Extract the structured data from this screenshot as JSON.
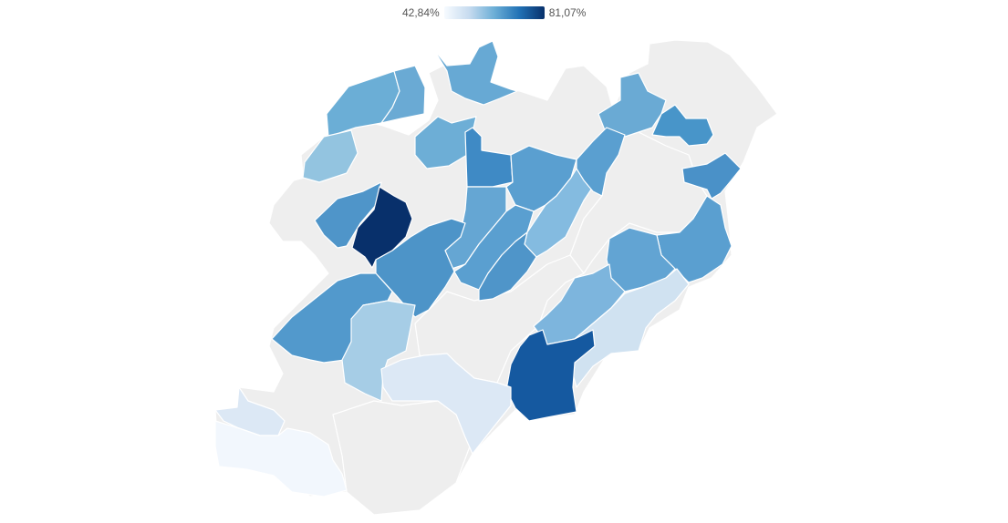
{
  "legend": {
    "min_label": "42,84%",
    "max_label": "81,07%",
    "min_value": 42.84,
    "max_value": 81.07,
    "colors": [
      "#f7fbff",
      "#c6dbef",
      "#6baed6",
      "#2171b5",
      "#08306b"
    ]
  },
  "map": {
    "no_data_color": "#eeeeee",
    "regions": [
      {
        "id": "nw-outer",
        "value": null
      },
      {
        "id": "n-west",
        "value": 64.5
      },
      {
        "id": "n-west-inner",
        "value": 62.0
      },
      {
        "id": "n-top",
        "value": 63.8
      },
      {
        "id": "n-top-right-grey",
        "value": null
      },
      {
        "id": "n-center",
        "value": 62.6
      },
      {
        "id": "n-center-dark",
        "value": 67.2
      },
      {
        "id": "w-small",
        "value": 56.8
      },
      {
        "id": "w-dark-navy",
        "value": 81.07
      },
      {
        "id": "w-mid-blue",
        "value": 65.9
      },
      {
        "id": "c-blue-1",
        "value": 63.4
      },
      {
        "id": "c-blue-2",
        "value": 64.8
      },
      {
        "id": "c-blue-3",
        "value": 66.0
      },
      {
        "id": "c-blue-4",
        "value": 65.2
      },
      {
        "id": "c-light",
        "value": 59.5
      },
      {
        "id": "ne-blue",
        "value": 63.0
      },
      {
        "id": "ne-dark",
        "value": 67.5
      },
      {
        "id": "ne-right",
        "value": 66.8
      },
      {
        "id": "e-blue",
        "value": 65.5
      },
      {
        "id": "e-mid",
        "value": 63.2
      },
      {
        "id": "e-light",
        "value": 59.9
      },
      {
        "id": "se-pale",
        "value": 51.5
      },
      {
        "id": "se-dark",
        "value": 74.8
      },
      {
        "id": "sw-blue",
        "value": 66.3
      },
      {
        "id": "sw-light",
        "value": 56.0
      },
      {
        "id": "s-pale",
        "value": 49.5
      },
      {
        "id": "s-pale-2",
        "value": 48.8
      },
      {
        "id": "sw-pale-edge",
        "value": 47.6
      },
      {
        "id": "sw-palest",
        "value": 42.84
      },
      {
        "id": "grey-center",
        "value": null
      },
      {
        "id": "grey-east",
        "value": null
      },
      {
        "id": "grey-south",
        "value": null
      },
      {
        "id": "grey-west",
        "value": null
      }
    ]
  }
}
